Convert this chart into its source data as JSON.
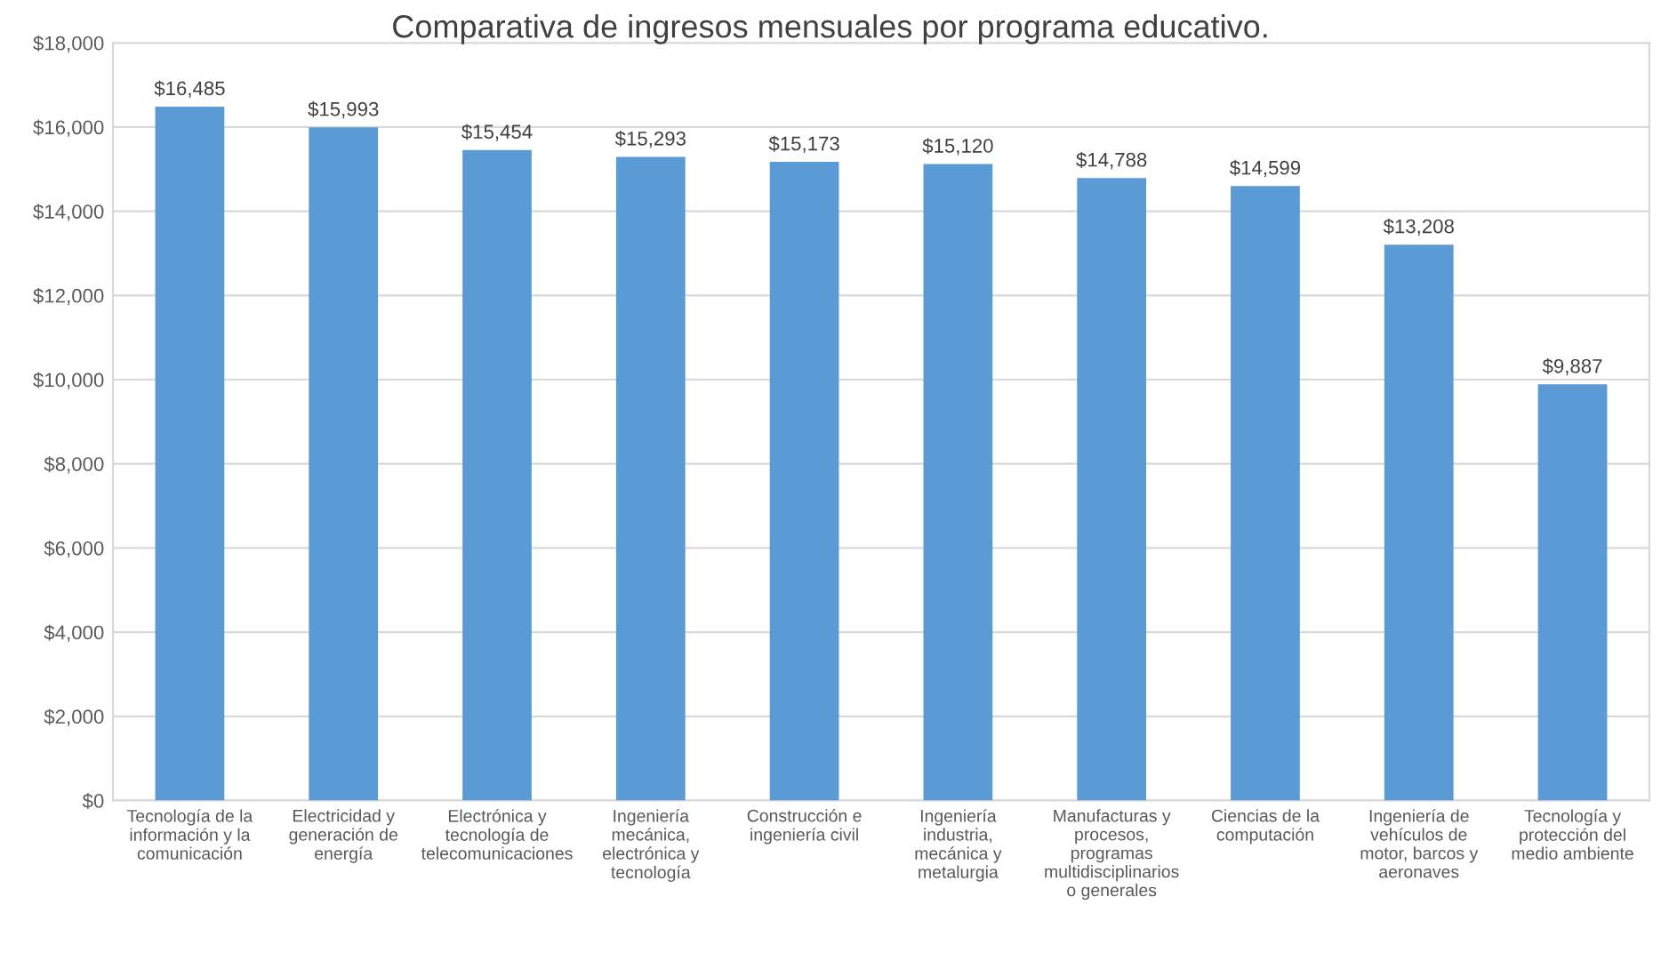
{
  "chart_data": {
    "type": "bar",
    "title": "Comparativa de ingresos mensuales por programa educativo.",
    "categories": [
      "Tecnología de la información y la comunicación",
      "Electricidad y generación de energía",
      "Electrónica y tecnología de telecomunicaciones",
      "Ingeniería mecánica, electrónica y tecnología",
      "Construcción e ingeniería civil",
      "Ingeniería industria, mecánica y metalurgia",
      "Manufacturas y procesos, programas multidisciplinarios o generales",
      "Ciencias de la computación",
      "Ingeniería de vehículos de motor, barcos y aeronaves",
      "Tecnología y protección del medio ambiente"
    ],
    "values": [
      16485,
      15993,
      15454,
      15293,
      15173,
      15120,
      14788,
      14599,
      13208,
      9887
    ],
    "color": "#5b9bd5",
    "value_labels": [
      "$16,485",
      "$15,993",
      "$15,454",
      "$15,293",
      "$15,173",
      "$15,120",
      "$14,788",
      "$14,599",
      "$13,208",
      "$9,887"
    ],
    "ylim": [
      0,
      18000
    ],
    "yticks": [
      {
        "value": 0,
        "label": "$0"
      },
      {
        "value": 2000,
        "label": "$2,000"
      },
      {
        "value": 4000,
        "label": "$4,000"
      },
      {
        "value": 6000,
        "label": "$6,000"
      },
      {
        "value": 8000,
        "label": "$8,000"
      },
      {
        "value": 10000,
        "label": "$10,000"
      },
      {
        "value": 12000,
        "label": "$12,000"
      },
      {
        "value": 14000,
        "label": "$14,000"
      },
      {
        "value": 16000,
        "label": "$16,000"
      },
      {
        "value": 18000,
        "label": "$18,000"
      }
    ],
    "grid": "y"
  }
}
